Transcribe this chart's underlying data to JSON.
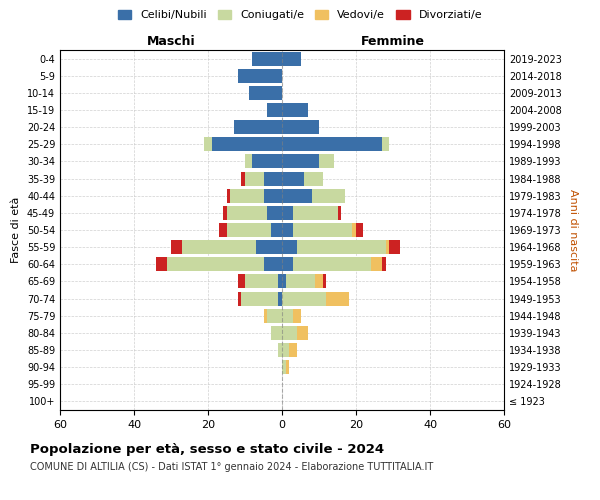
{
  "age_groups": [
    "100+",
    "95-99",
    "90-94",
    "85-89",
    "80-84",
    "75-79",
    "70-74",
    "65-69",
    "60-64",
    "55-59",
    "50-54",
    "45-49",
    "40-44",
    "35-39",
    "30-34",
    "25-29",
    "20-24",
    "15-19",
    "10-14",
    "5-9",
    "0-4"
  ],
  "birth_years": [
    "≤ 1923",
    "1924-1928",
    "1929-1933",
    "1934-1938",
    "1939-1943",
    "1944-1948",
    "1949-1953",
    "1954-1958",
    "1959-1963",
    "1964-1968",
    "1969-1973",
    "1974-1978",
    "1979-1983",
    "1984-1988",
    "1989-1993",
    "1994-1998",
    "1999-2003",
    "2004-2008",
    "2009-2013",
    "2014-2018",
    "2019-2023"
  ],
  "colors": {
    "celibi": "#3a6fa8",
    "coniugati": "#c8d9a0",
    "vedovi": "#f0c060",
    "divorziati": "#cc2222"
  },
  "maschi": {
    "celibi": [
      0,
      0,
      0,
      0,
      0,
      0,
      1,
      1,
      5,
      7,
      3,
      4,
      5,
      5,
      8,
      19,
      13,
      4,
      9,
      12,
      8
    ],
    "coniugati": [
      0,
      0,
      0,
      1,
      3,
      4,
      10,
      9,
      26,
      20,
      12,
      11,
      9,
      5,
      2,
      2,
      0,
      0,
      0,
      0,
      0
    ],
    "vedovi": [
      0,
      0,
      0,
      0,
      0,
      1,
      0,
      0,
      0,
      0,
      0,
      0,
      0,
      0,
      0,
      0,
      0,
      0,
      0,
      0,
      0
    ],
    "divorziati": [
      0,
      0,
      0,
      0,
      0,
      0,
      1,
      2,
      3,
      3,
      2,
      1,
      1,
      1,
      0,
      0,
      0,
      0,
      0,
      0,
      0
    ]
  },
  "femmine": {
    "nubili": [
      0,
      0,
      0,
      0,
      0,
      0,
      0,
      1,
      3,
      4,
      3,
      3,
      8,
      6,
      10,
      27,
      10,
      7,
      0,
      0,
      5
    ],
    "coniugate": [
      0,
      0,
      1,
      2,
      4,
      3,
      12,
      8,
      21,
      24,
      16,
      12,
      9,
      5,
      4,
      2,
      0,
      0,
      0,
      0,
      0
    ],
    "vedove": [
      0,
      0,
      1,
      2,
      3,
      2,
      6,
      2,
      3,
      1,
      1,
      0,
      0,
      0,
      0,
      0,
      0,
      0,
      0,
      0,
      0
    ],
    "divorziate": [
      0,
      0,
      0,
      0,
      0,
      0,
      0,
      1,
      1,
      3,
      2,
      1,
      0,
      0,
      0,
      0,
      0,
      0,
      0,
      0,
      0
    ]
  },
  "xlim": 60,
  "title": "Popolazione per età, sesso e stato civile - 2024",
  "subtitle": "COMUNE DI ALTILIA (CS) - Dati ISTAT 1° gennaio 2024 - Elaborazione TUTTITALIA.IT",
  "xlabel_left": "Maschi",
  "xlabel_right": "Femmine",
  "ylabel": "Fasce di età",
  "ylabel_right": "Anni di nascita",
  "legend_labels": [
    "Celibi/Nubili",
    "Coniugati/e",
    "Vedovi/e",
    "Divorziati/e"
  ],
  "background_color": "#ffffff",
  "grid_color": "#cccccc"
}
